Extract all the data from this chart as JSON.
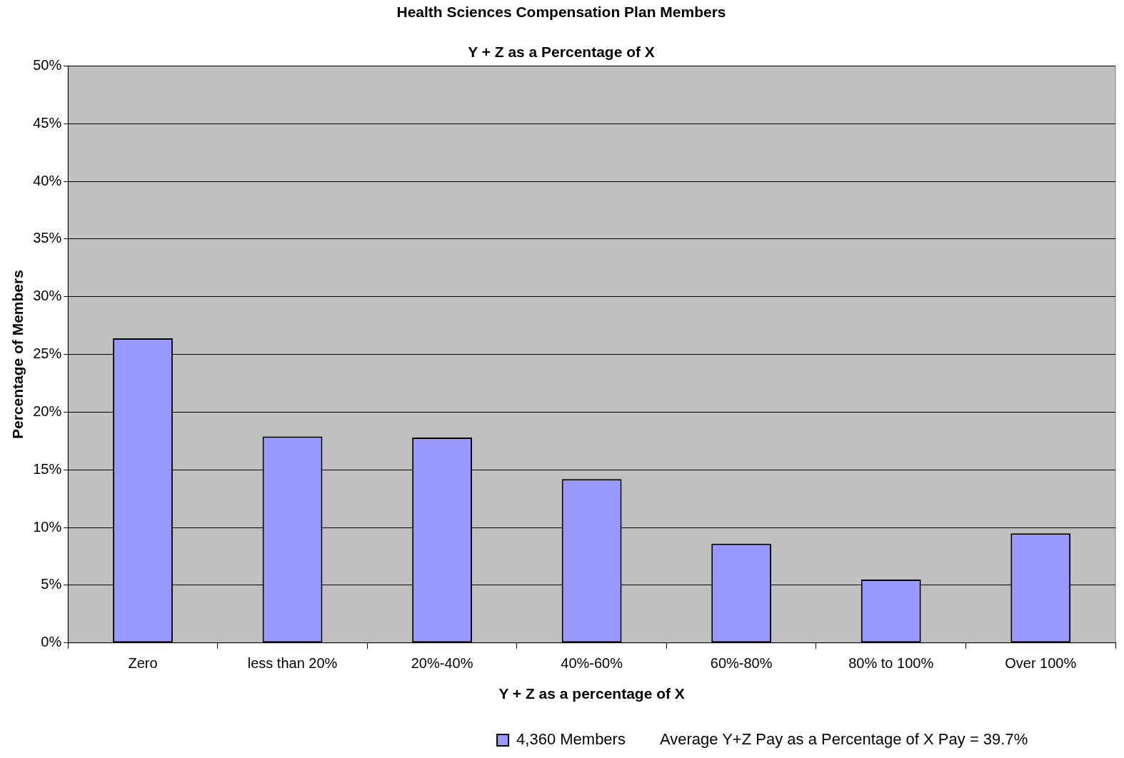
{
  "chart_data": {
    "type": "bar",
    "title": "Health Sciences Compensation Plan Members",
    "subtitle": "Y + Z as a Percentage of X",
    "xlabel": "Y + Z as a percentage of X",
    "ylabel": "Percentage of Members",
    "categories": [
      "Zero",
      "less than 20%",
      "20%-40%",
      "40%-60%",
      "60%-80%",
      "80% to 100%",
      "Over 100%"
    ],
    "series": [
      {
        "name": "4,360 Members",
        "color": "#9999ff",
        "values": [
          26.4,
          17.9,
          17.8,
          14.2,
          8.6,
          5.5,
          9.5
        ]
      }
    ],
    "ylim": [
      0,
      50
    ],
    "yticks": [
      {
        "value": 0,
        "label": "0%"
      },
      {
        "value": 5,
        "label": "5%"
      },
      {
        "value": 10,
        "label": "10%"
      },
      {
        "value": 15,
        "label": "15%"
      },
      {
        "value": 20,
        "label": "20%"
      },
      {
        "value": 25,
        "label": "25%"
      },
      {
        "value": 30,
        "label": "30%"
      },
      {
        "value": 35,
        "label": "35%"
      },
      {
        "value": 40,
        "label": "40%"
      },
      {
        "value": 45,
        "label": "45%"
      },
      {
        "value": 50,
        "label": "50%"
      }
    ],
    "grid": "y",
    "legend": "bottom",
    "annotations": [
      "Average Y+Z Pay as a Percentage of X Pay = 39.7%"
    ]
  }
}
